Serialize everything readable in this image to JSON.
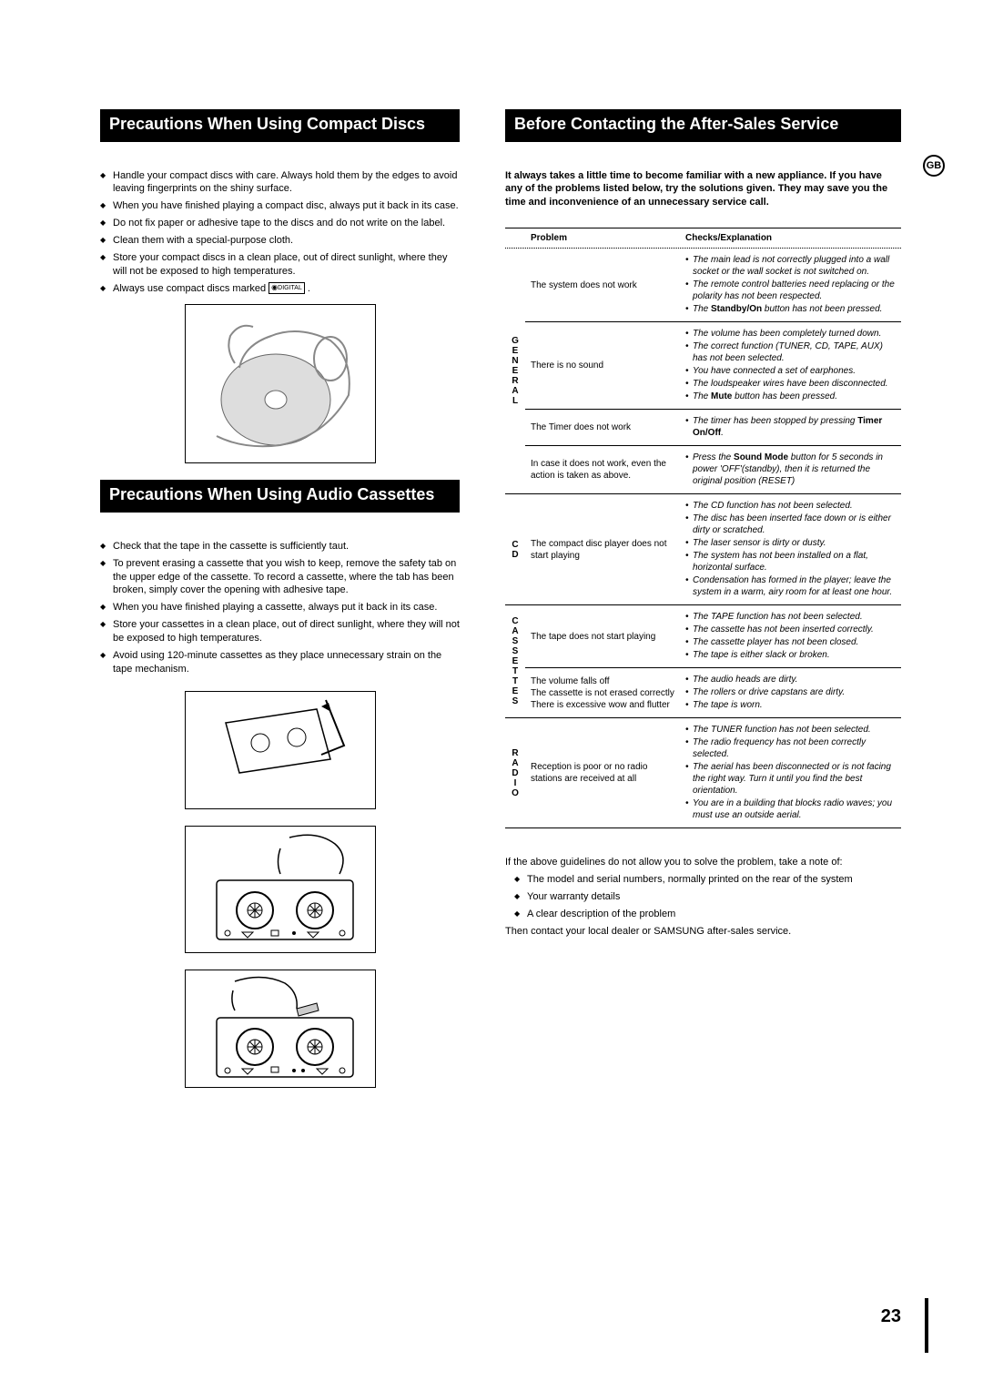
{
  "badge": "GB",
  "pageNumber": "23",
  "left": {
    "section1": {
      "title": "Precautions When Using Compact Discs",
      "bullets": [
        "Handle your compact discs with care. Always hold them by the edges to avoid leaving fingerprints on the shiny surface.",
        "When you have finished playing a compact disc, always put it back in its case.",
        "Do not fix paper or adhesive tape to the discs and do not write on the label.",
        "Clean them with a special-purpose cloth.",
        "Store your compact discs in a clean place, out of direct sunlight, where they will not be exposed to high temperatures.",
        "Always use compact discs marked"
      ]
    },
    "section2": {
      "title": "Precautions When Using Audio Cassettes",
      "bullets": [
        "Check that the tape in the cassette is sufficiently taut.",
        "To prevent erasing a cassette that you wish to keep, remove the safety tab on the upper edge of the cassette. To record a cassette, where the tab has been broken, simply cover the opening with adhesive tape.",
        "When you have finished playing a cassette, always put it back in its case.",
        "Store your cassettes in a clean place, out of direct sunlight, where they will not be exposed to high temperatures.",
        "Avoid using 120-minute cassettes as they place unnecessary strain on the tape mechanism."
      ]
    }
  },
  "right": {
    "title": "Before Contacting the After-Sales Service",
    "intro": "It always takes a little time to become familiar with a new appliance. If you have any of the problems listed below, try the solutions given. They may save you the time and inconvenience of an unnecessary service call.",
    "headers": {
      "problem": "Problem",
      "checks": "Checks/Explanation"
    },
    "groups": [
      {
        "cat": "GENERAL",
        "rows": [
          {
            "problem": "The system does not work",
            "checks": [
              "The main lead is not correctly plugged into a wall socket or the wall socket is not switched on.",
              "The remote control batteries need replacing or the polarity has not been respected.",
              "The <b>Standby/On</b> button has not been pressed."
            ]
          },
          {
            "problem": "There is no sound",
            "checks": [
              "The volume has been completely turned down.",
              "The correct function (TUNER, CD, TAPE, AUX) has not been selected.",
              "You have connected a set of earphones.",
              "The loudspeaker wires have been disconnected.",
              "The <b>Mute</b> button has been pressed."
            ]
          },
          {
            "problem": "The Timer does not work",
            "checks": [
              "The timer has been stopped by pressing <b>Timer On/Off</b>."
            ]
          },
          {
            "problem": "In case it does not work, even the action is taken as above.",
            "checks": [
              "Press the <b>Sound Mode</b> button for 5 seconds in power 'OFF'(standby), then it is returned the original position (RESET)"
            ]
          }
        ]
      },
      {
        "cat": "CD",
        "rows": [
          {
            "problem": "The compact disc player does not start playing",
            "checks": [
              "The CD function has not been selected.",
              "The disc has been inserted face down or is either dirty or scratched.",
              "The laser sensor is dirty or dusty.",
              "The system has not been installed on a flat, horizontal surface.",
              "Condensation has formed in the player; leave the system in a warm, airy room for at least one hour."
            ]
          }
        ]
      },
      {
        "cat": "CASSETTES",
        "rows": [
          {
            "problem": "The tape does not start playing",
            "checks": [
              "The TAPE function has not been selected.",
              "The cassette has not been inserted correctly.",
              "The cassette player has not been closed.",
              "The tape is either slack or broken."
            ]
          },
          {
            "problem": "The volume falls off\nThe cassette is not erased correctly\nThere is excessive wow and flutter",
            "checks": [
              "The audio heads are dirty.",
              "The rollers or drive capstans are dirty.",
              "The tape is worn."
            ]
          }
        ]
      },
      {
        "cat": "RADIO",
        "rows": [
          {
            "problem": "Reception is poor or no radio stations are received at all",
            "checks": [
              "The TUNER function has not been selected.",
              "The radio frequency has not been correctly selected.",
              "The aerial has been disconnected or is not facing the right way. Turn it until you find the best orientation.",
              "You are in a building that blocks radio waves; you must use an outside aerial."
            ]
          }
        ]
      }
    ],
    "footer": {
      "lead": "If the above guidelines do not allow you to solve the problem, take a note of:",
      "items": [
        "The model and serial numbers, normally printed on the rear of the system",
        "Your warranty details",
        "A clear description of the problem"
      ],
      "closing": "Then contact your local dealer or SAMSUNG after-sales service."
    }
  }
}
